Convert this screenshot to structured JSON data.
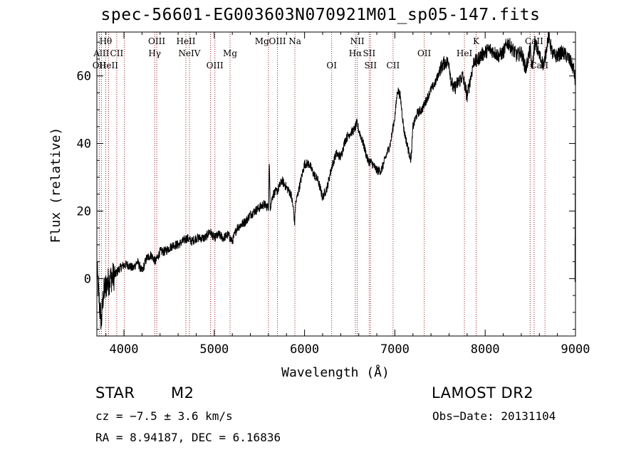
{
  "chart_data": {
    "type": "line",
    "title": "spec-56601-EG003603N070921M01_sp05-147.fits",
    "xlabel": "Wavelength (Å)",
    "ylabel": "Flux (relative)",
    "xlim": [
      3700,
      9000
    ],
    "ylim": [
      -17,
      73
    ],
    "xticks": [
      4000,
      5000,
      6000,
      7000,
      8000,
      9000
    ],
    "yticks": [
      0,
      20,
      40,
      60
    ],
    "series": [
      {
        "x": [
          3700,
          3730,
          3750,
          3770,
          3800,
          3850,
          3900,
          3950,
          4000,
          4050,
          4100,
          4150,
          4200,
          4250,
          4300,
          4350,
          4400,
          4450,
          4500,
          4550,
          4600,
          4650,
          4700,
          4750,
          4800,
          4850,
          4900,
          4950,
          5000,
          5050,
          5100,
          5150,
          5200,
          5250,
          5300,
          5350,
          5400,
          5450,
          5500,
          5550,
          5600,
          5610,
          5620,
          5650,
          5700,
          5750,
          5800,
          5850,
          5880,
          5890,
          5900,
          5950,
          6000,
          6050,
          6100,
          6150,
          6200,
          6250,
          6300,
          6350,
          6400,
          6450,
          6500,
          6550,
          6580,
          6600,
          6650,
          6700,
          6750,
          6800,
          6850,
          6900,
          6950,
          7000,
          7030,
          7060,
          7100,
          7150,
          7180,
          7200,
          7250,
          7300,
          7350,
          7400,
          7450,
          7500,
          7550,
          7600,
          7620,
          7650,
          7700,
          7750,
          7800,
          7850,
          7880,
          7900,
          7950,
          8000,
          8050,
          8100,
          8150,
          8200,
          8250,
          8300,
          8350,
          8400,
          8450,
          8500,
          8520,
          8550,
          8600,
          8650,
          8700,
          8750,
          8800,
          8850,
          8900,
          8950,
          8980,
          9000
        ],
        "y": [
          3,
          -8,
          -13,
          -5,
          -2,
          0,
          1,
          3,
          4,
          4,
          3,
          5,
          2,
          6,
          7,
          5,
          8,
          8,
          9,
          10,
          10,
          11,
          12,
          11,
          12,
          12,
          12,
          14,
          12,
          13,
          12,
          13,
          11,
          15,
          16,
          17,
          19,
          20,
          21,
          22,
          21,
          34,
          21,
          25,
          26,
          29,
          27,
          25,
          20,
          16,
          22,
          28,
          34,
          34,
          31,
          29,
          24,
          27,
          33,
          37,
          36,
          41,
          43,
          44,
          46,
          44,
          40,
          35,
          34,
          32,
          32,
          36,
          40,
          48,
          56,
          54,
          44,
          38,
          35,
          45,
          49,
          50,
          53,
          56,
          58,
          62,
          64,
          64,
          59,
          56,
          58,
          60,
          54,
          61,
          65,
          64,
          66,
          67,
          68,
          67,
          66,
          67,
          70,
          68,
          66,
          67,
          62,
          68,
          62,
          70,
          66,
          63,
          72,
          66,
          66,
          67,
          66,
          64,
          62,
          58
        ]
      }
    ],
    "line_markers": [
      {
        "label": "Hθ",
        "wavelength": 3798,
        "row": 1
      },
      {
        "label": "AlII",
        "wavelength": 3750,
        "row": 2
      },
      {
        "label": "CII",
        "wavelength": 3920,
        "row": 2
      },
      {
        "label": "OII",
        "wavelength": 3727,
        "row": 3
      },
      {
        "label": "HeII",
        "wavelength": 3830,
        "row": 3
      },
      {
        "label": "OIII",
        "wavelength": 4363,
        "row": 1
      },
      {
        "label": "Hγ",
        "wavelength": 4340,
        "row": 2
      },
      {
        "label": "HeII",
        "wavelength": 4686,
        "row": 1
      },
      {
        "label": "NeIV",
        "wavelength": 4725,
        "row": 2
      },
      {
        "label": "OIII",
        "wavelength": 5007,
        "row": 3
      },
      {
        "label": "Mg",
        "wavelength": 5175,
        "row": 2
      },
      {
        "label": "Mg",
        "wavelength": 5528,
        "row": 1
      },
      {
        "label": "OIII",
        "wavelength": 5700,
        "row": 1
      },
      {
        "label": "Na",
        "wavelength": 5893,
        "row": 1
      },
      {
        "label": "NII",
        "wavelength": 6584,
        "row": 1
      },
      {
        "label": "Hα",
        "wavelength": 6563,
        "row": 2
      },
      {
        "label": "SII",
        "wavelength": 6716,
        "row": 2
      },
      {
        "label": "OI",
        "wavelength": 6300,
        "row": 3
      },
      {
        "label": "SII",
        "wavelength": 6731,
        "row": 3
      },
      {
        "label": "CII",
        "wavelength": 6980,
        "row": 3
      },
      {
        "label": "OII",
        "wavelength": 7325,
        "row": 2
      },
      {
        "label": "HeI",
        "wavelength": 7770,
        "row": 2
      },
      {
        "label": "K",
        "wavelength": 7900,
        "row": 1
      },
      {
        "label": "CaII",
        "wavelength": 8542,
        "row": 1
      },
      {
        "label": "CaII",
        "wavelength": 8600,
        "row": 3
      }
    ],
    "marker_lines": [
      3727,
      3750,
      3798,
      3830,
      3920,
      4005,
      4340,
      4363,
      4686,
      4725,
      4959,
      5007,
      5175,
      5600,
      5700,
      5893,
      6300,
      6563,
      6584,
      6716,
      6731,
      6980,
      7325,
      7770,
      7900,
      8498,
      8542,
      8662
    ]
  },
  "info": {
    "object_class": "STAR",
    "subclass": "M2",
    "survey": "LAMOST DR2",
    "cz": "cz = −7.5 ± 3.6 km/s",
    "obs_date": "Obs−Date: 20131104",
    "radec": "RA =   8.94187, DEC =   6.16836"
  }
}
